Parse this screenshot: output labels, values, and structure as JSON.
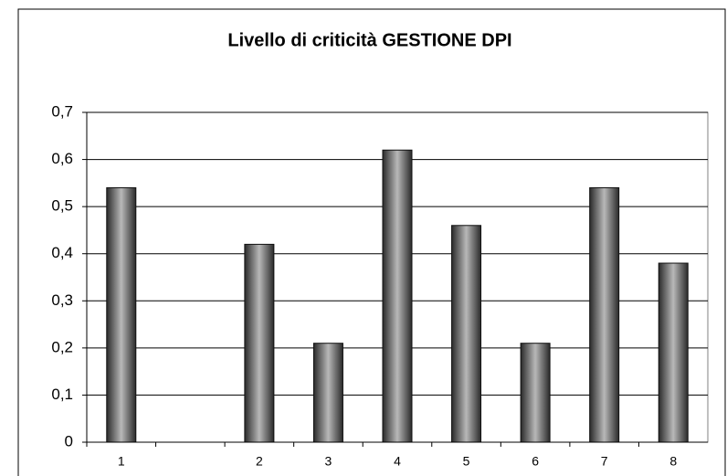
{
  "chart_data": {
    "type": "bar",
    "title": "Livello di criticità GESTIONE DPI",
    "categories": [
      "1",
      null,
      "2",
      "3",
      "4",
      "5",
      "6",
      "7",
      "8"
    ],
    "values": [
      0.54,
      null,
      0.42,
      0.21,
      0.62,
      0.46,
      0.21,
      0.54,
      0.38
    ],
    "ylim": [
      0,
      0.7
    ],
    "yticks": [
      0,
      {
        "value": 0.1,
        "label": "0,1"
      },
      {
        "value": 0.2,
        "label": "0,2"
      },
      {
        "value": 0.3,
        "label": "0,3"
      },
      {
        "value": 0.4,
        "label": "0,4"
      },
      {
        "value": 0.5,
        "label": "0,5"
      },
      {
        "value": 0.6,
        "label": "0,6"
      },
      {
        "value": 0.7,
        "label": "0,7"
      }
    ],
    "grid": true
  }
}
